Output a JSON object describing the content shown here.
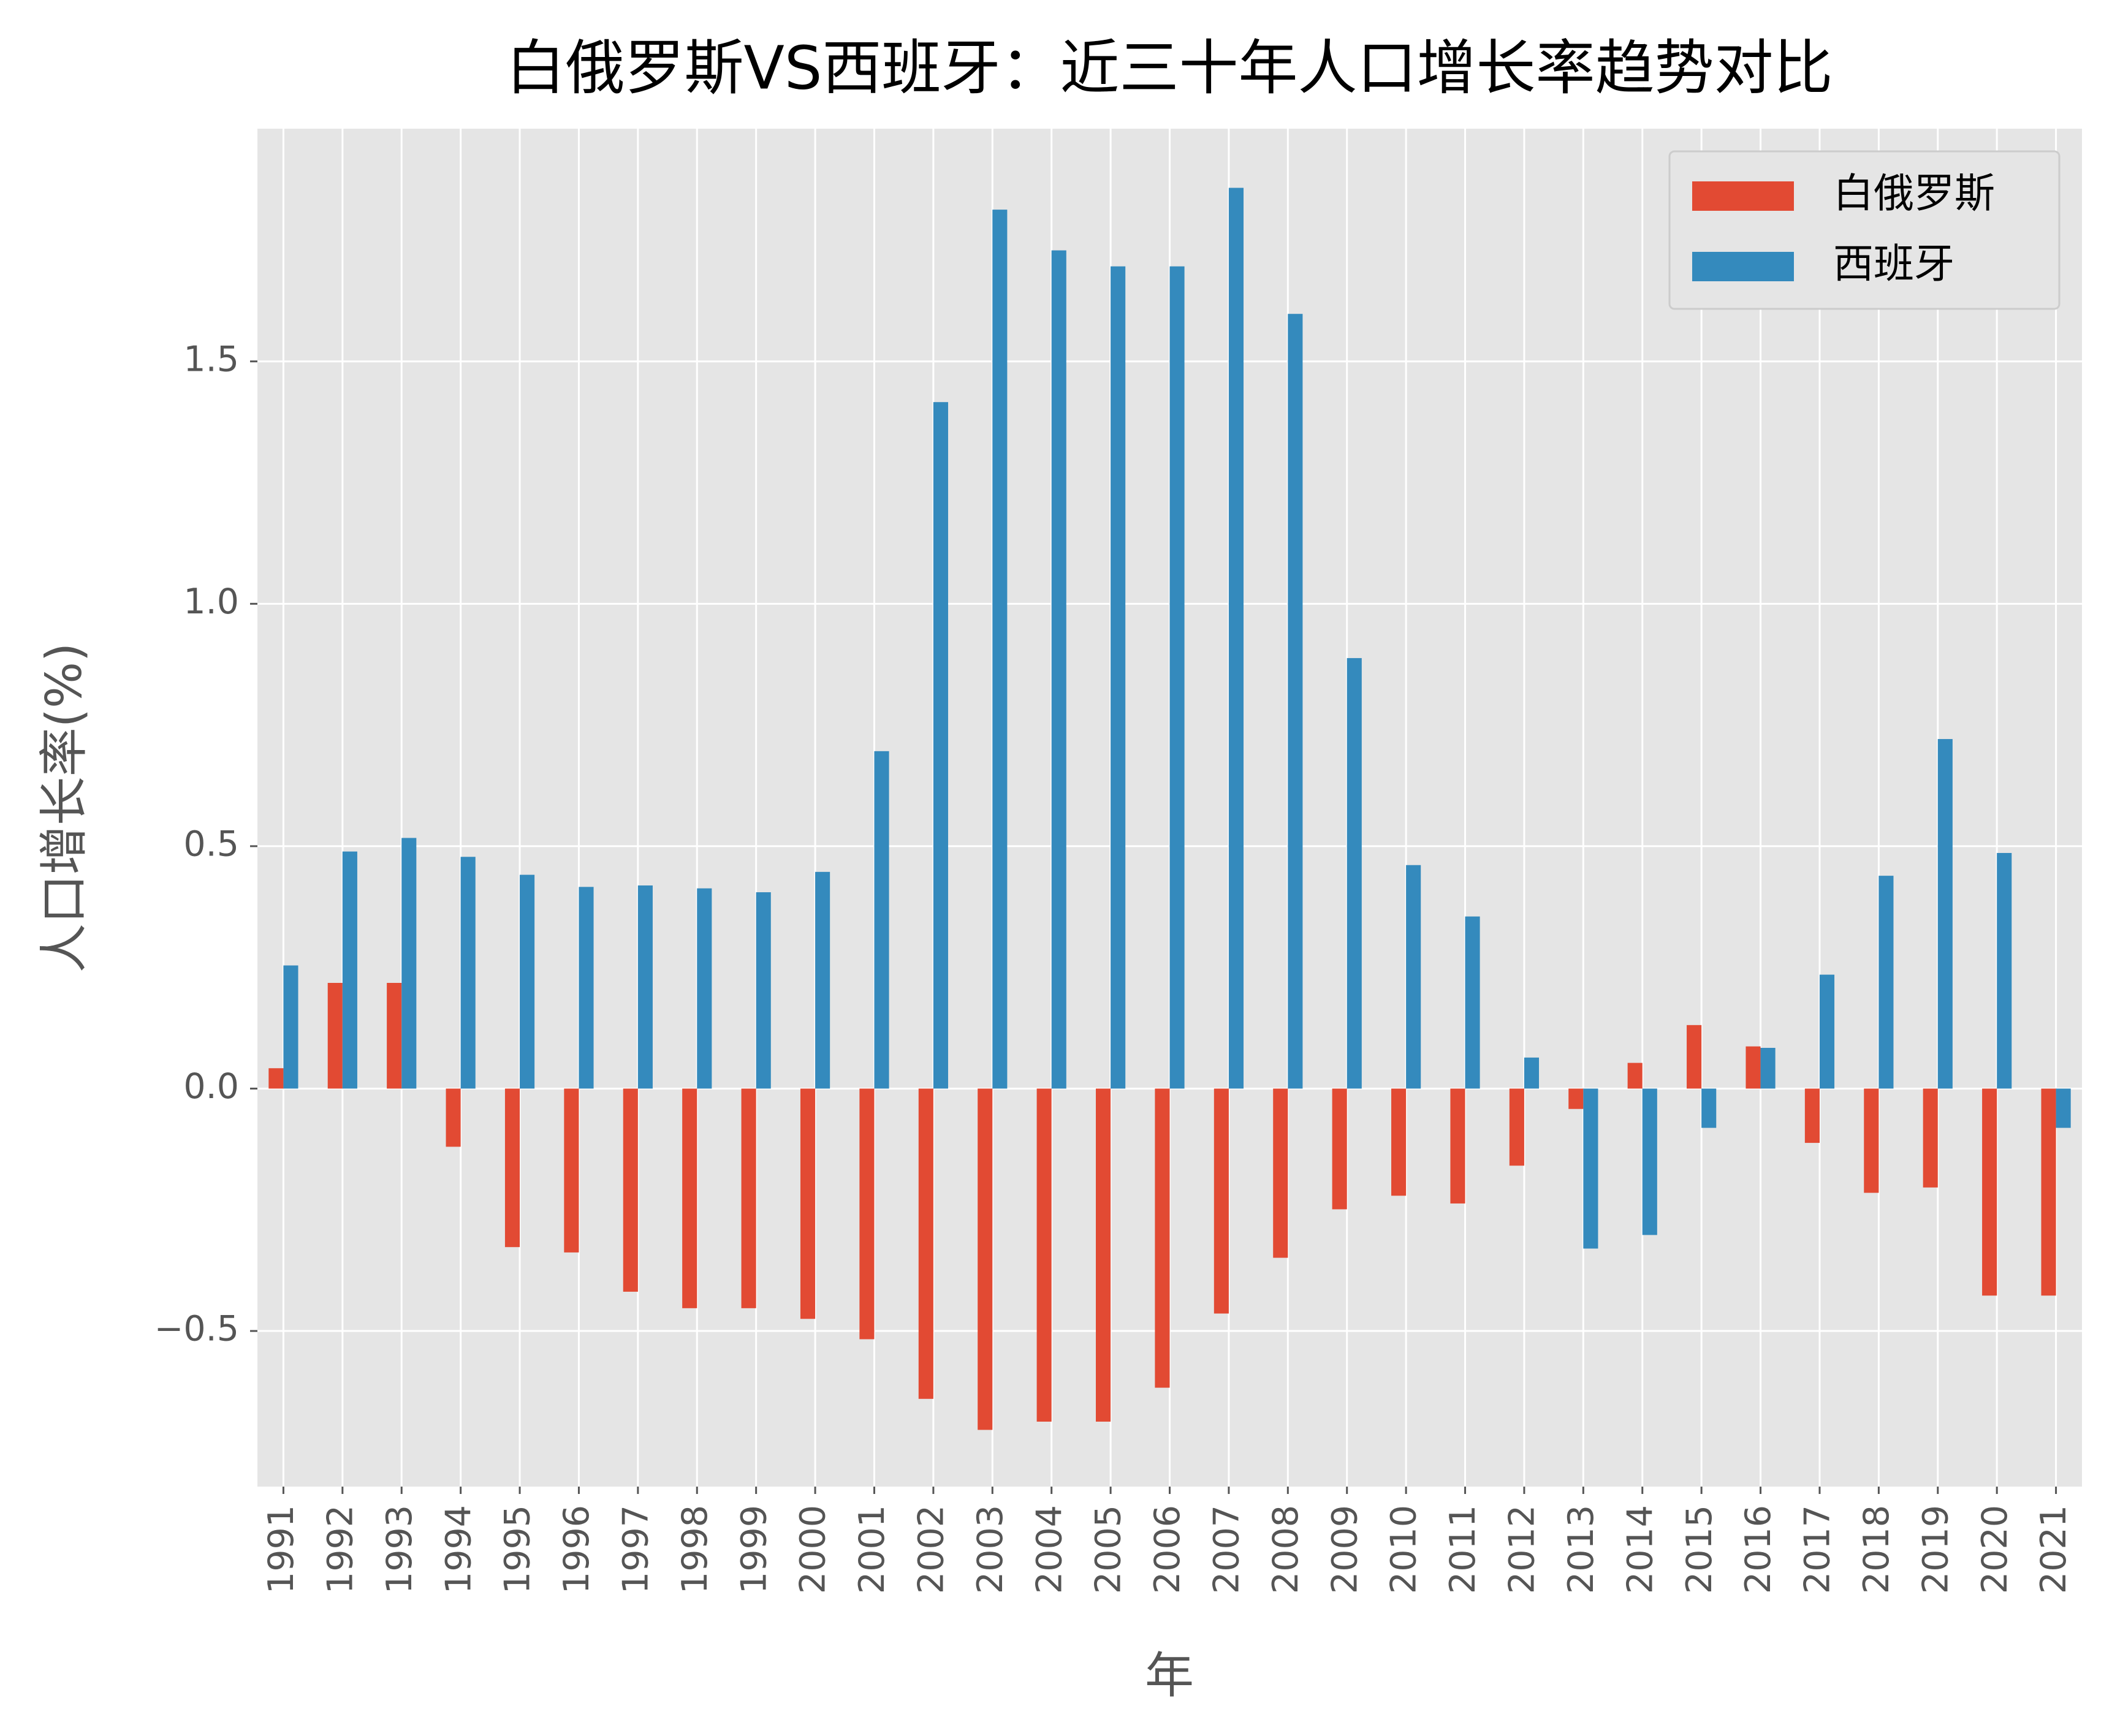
{
  "chart_data": {
    "type": "bar",
    "title": "白俄罗斯VS西班牙：近三十年人口增长率趋势对比",
    "x_label": "年",
    "y_label": "人口增长率(%)",
    "categories": [
      "1991",
      "1992",
      "1993",
      "1994",
      "1995",
      "1996",
      "1997",
      "1998",
      "1999",
      "2000",
      "2001",
      "2002",
      "2003",
      "2004",
      "2005",
      "2006",
      "2007",
      "2008",
      "2009",
      "2010",
      "2011",
      "2012",
      "2013",
      "2014",
      "2015",
      "2016",
      "2017",
      "2018",
      "2019",
      "2020",
      "2021"
    ],
    "series": [
      {
        "name": "白俄罗斯",
        "color": "#E24A33",
        "values": [
          0.042,
          0.218,
          0.218,
          -0.12,
          -0.327,
          -0.338,
          -0.419,
          -0.453,
          -0.453,
          -0.475,
          -0.517,
          -0.64,
          -0.704,
          -0.687,
          -0.687,
          -0.617,
          -0.464,
          -0.349,
          -0.249,
          -0.221,
          -0.237,
          -0.159,
          -0.042,
          0.053,
          0.131,
          0.087,
          -0.112,
          -0.215,
          -0.204,
          -0.427,
          -0.427
        ]
      },
      {
        "name": "西班牙",
        "color": "#348ABD",
        "values": [
          0.254,
          0.489,
          0.517,
          0.478,
          0.441,
          0.416,
          0.419,
          0.413,
          0.405,
          0.447,
          0.696,
          1.416,
          1.813,
          1.729,
          1.696,
          1.696,
          1.858,
          1.598,
          0.888,
          0.461,
          0.355,
          0.064,
          -0.33,
          -0.302,
          -0.081,
          0.084,
          0.235,
          0.439,
          0.721,
          0.486,
          -0.081
        ]
      }
    ],
    "ylim": [
      -0.821,
      1.98
    ],
    "yticks": [
      {
        "value": -0.5,
        "label": "−0.5"
      },
      {
        "value": 0,
        "label": "0.0"
      },
      0.5,
      {
        "value": 1,
        "label": "1.0"
      },
      1.5
    ],
    "grid": true,
    "legend": "upper right"
  }
}
